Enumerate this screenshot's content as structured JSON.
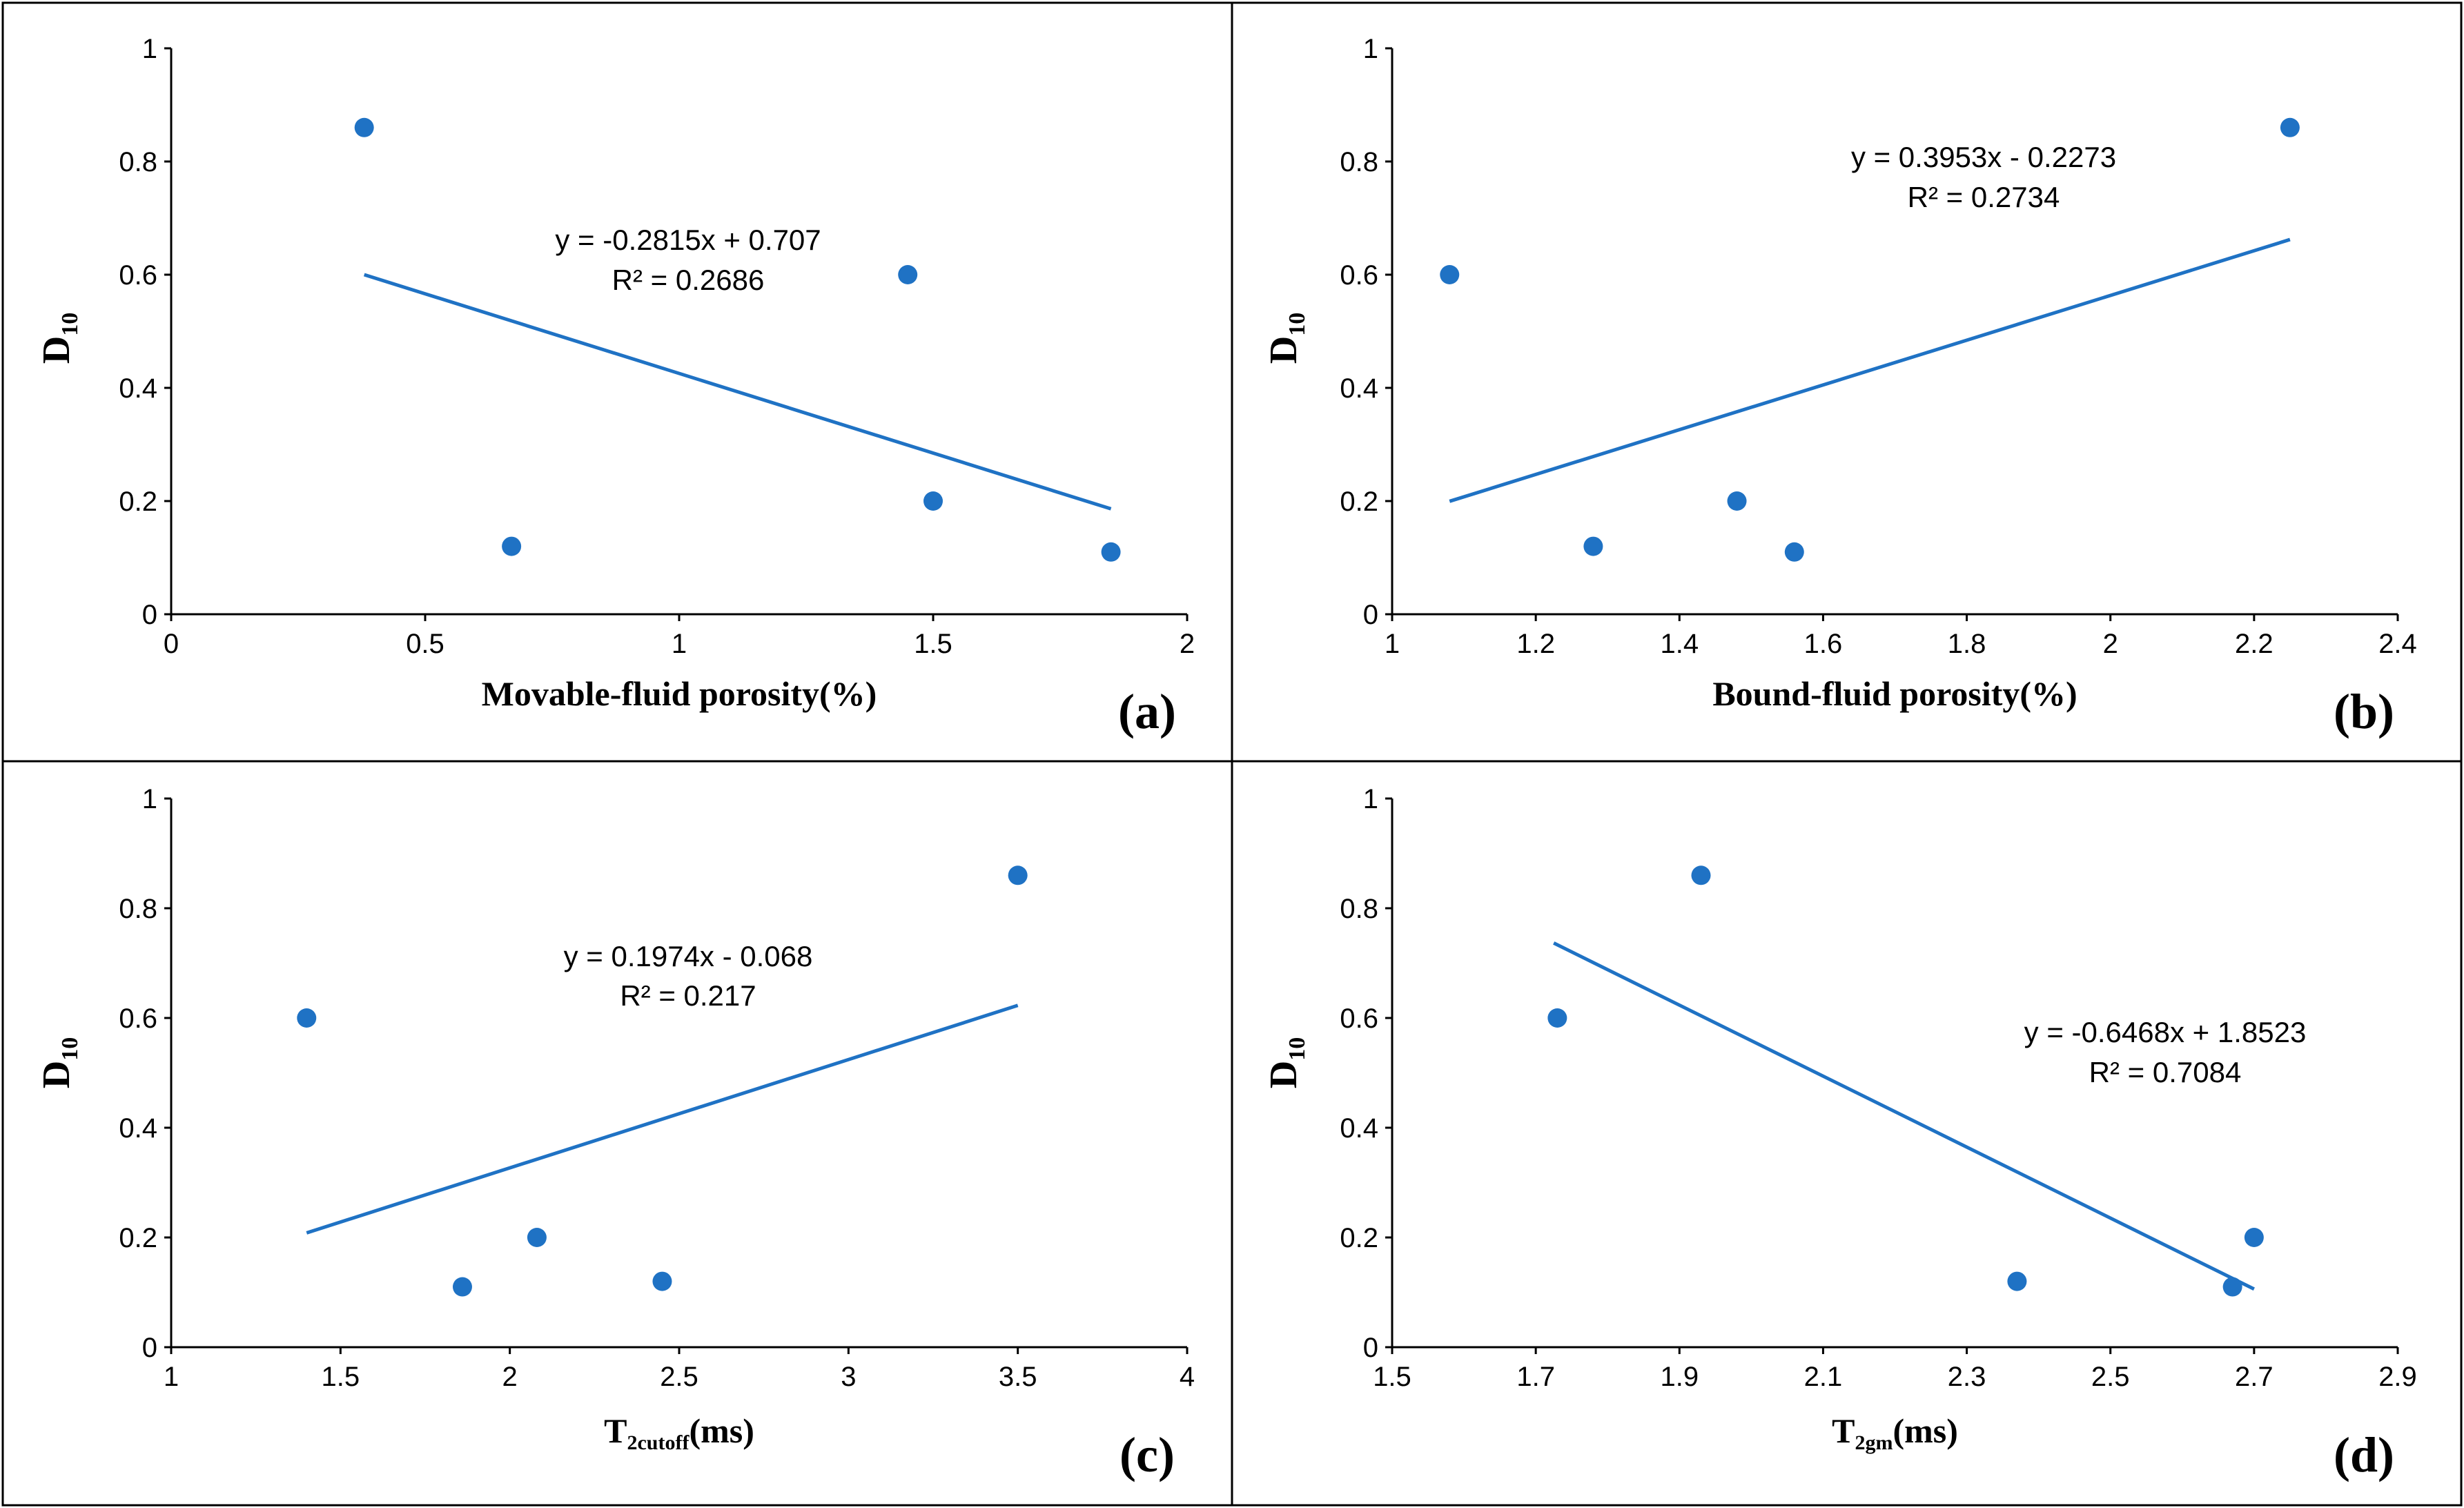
{
  "colors": {
    "point": "#1f72c4",
    "trend": "#1f72c4",
    "frame": "#000000"
  },
  "chart_data": [
    {
      "type": "scatter",
      "panel": "(a)",
      "xlabel": "Movable-fluid porosity(%)",
      "ylabel": {
        "main": "D",
        "sub": "10"
      },
      "xlim": [
        0,
        2
      ],
      "ylim": [
        0,
        1
      ],
      "x_ticks": [
        0,
        0.5,
        1,
        1.5,
        2
      ],
      "x_tick_labels": [
        "0",
        "0.5",
        "1",
        "1.5",
        "2"
      ],
      "y_ticks": [
        0,
        0.2,
        0.4,
        0.6,
        0.8,
        1
      ],
      "y_tick_labels": [
        "0",
        "0.2",
        "0.4",
        "0.6",
        "0.8",
        "1"
      ],
      "points": [
        {
          "x": 0.38,
          "y": 0.86
        },
        {
          "x": 0.67,
          "y": 0.12
        },
        {
          "x": 1.45,
          "y": 0.6
        },
        {
          "x": 1.5,
          "y": 0.2
        },
        {
          "x": 1.85,
          "y": 0.11
        }
      ],
      "trendline": {
        "slope": -0.2815,
        "intercept": 0.707,
        "x_range": [
          0.38,
          1.85
        ]
      },
      "equation": "y = -0.2815x + 0.707",
      "r2": "R² = 0.2686"
    },
    {
      "type": "scatter",
      "panel": "(b)",
      "xlabel": "Bound-fluid porosity(%)",
      "ylabel": {
        "main": "D",
        "sub": "10"
      },
      "xlim": [
        1,
        2.4
      ],
      "ylim": [
        0,
        1
      ],
      "x_ticks": [
        1,
        1.2,
        1.4,
        1.6,
        1.8,
        2,
        2.2,
        2.4
      ],
      "x_tick_labels": [
        "1",
        "1.2",
        "1.4",
        "1.6",
        "1.8",
        "2",
        "2.2",
        "2.4"
      ],
      "y_ticks": [
        0,
        0.2,
        0.4,
        0.6,
        0.8,
        1
      ],
      "y_tick_labels": [
        "0",
        "0.2",
        "0.4",
        "0.6",
        "0.8",
        "1"
      ],
      "points": [
        {
          "x": 1.08,
          "y": 0.6
        },
        {
          "x": 1.28,
          "y": 0.12
        },
        {
          "x": 1.48,
          "y": 0.2
        },
        {
          "x": 1.56,
          "y": 0.11
        },
        {
          "x": 2.25,
          "y": 0.86
        }
      ],
      "trendline": {
        "slope": 0.3953,
        "intercept": -0.2273,
        "x_range": [
          1.08,
          2.25
        ]
      },
      "equation": "y = 0.3953x - 0.2273",
      "r2": "R² = 0.2734"
    },
    {
      "type": "scatter",
      "panel": "(c)",
      "xlabel": {
        "main": "T",
        "sub": "2cutoff",
        "unit": "(ms)"
      },
      "ylabel": {
        "main": "D",
        "sub": "10"
      },
      "xlim": [
        1,
        4
      ],
      "ylim": [
        0,
        1
      ],
      "x_ticks": [
        1,
        1.5,
        2,
        2.5,
        3,
        3.5,
        4
      ],
      "x_tick_labels": [
        "1",
        "1.5",
        "2",
        "2.5",
        "3",
        "3.5",
        "4"
      ],
      "y_ticks": [
        0,
        0.2,
        0.4,
        0.6,
        0.8,
        1
      ],
      "y_tick_labels": [
        "0",
        "0.2",
        "0.4",
        "0.6",
        "0.8",
        "1"
      ],
      "points": [
        {
          "x": 1.4,
          "y": 0.6
        },
        {
          "x": 1.86,
          "y": 0.11
        },
        {
          "x": 2.08,
          "y": 0.2
        },
        {
          "x": 2.45,
          "y": 0.12
        },
        {
          "x": 3.5,
          "y": 0.86
        }
      ],
      "trendline": {
        "slope": 0.1974,
        "intercept": -0.068,
        "x_range": [
          1.4,
          3.5
        ]
      },
      "equation": "y = 0.1974x - 0.068",
      "r2": "R² = 0.217"
    },
    {
      "type": "scatter",
      "panel": "(d)",
      "xlabel": {
        "main": "T",
        "sub": "2gm",
        "unit": "(ms)"
      },
      "ylabel": {
        "main": "D",
        "sub": "10"
      },
      "xlim": [
        1.5,
        2.9
      ],
      "ylim": [
        0,
        1
      ],
      "x_ticks": [
        1.5,
        1.7,
        1.9,
        2.1,
        2.3,
        2.5,
        2.7,
        2.9
      ],
      "x_tick_labels": [
        "1.5",
        "1.7",
        "1.9",
        "2.1",
        "2.3",
        "2.5",
        "2.7",
        "2.9"
      ],
      "y_ticks": [
        0,
        0.2,
        0.4,
        0.6,
        0.8,
        1
      ],
      "y_tick_labels": [
        "0",
        "0.2",
        "0.4",
        "0.6",
        "0.8",
        "1"
      ],
      "points": [
        {
          "x": 1.73,
          "y": 0.6
        },
        {
          "x": 1.93,
          "y": 0.86
        },
        {
          "x": 2.37,
          "y": 0.12
        },
        {
          "x": 2.67,
          "y": 0.11
        },
        {
          "x": 2.7,
          "y": 0.2
        }
      ],
      "trendline": {
        "slope": -0.6468,
        "intercept": 1.8523,
        "x_range": [
          1.725,
          2.7
        ]
      },
      "equation": "y = -0.6468x + 1.8523",
      "r2": "R² = 0.7084"
    }
  ]
}
